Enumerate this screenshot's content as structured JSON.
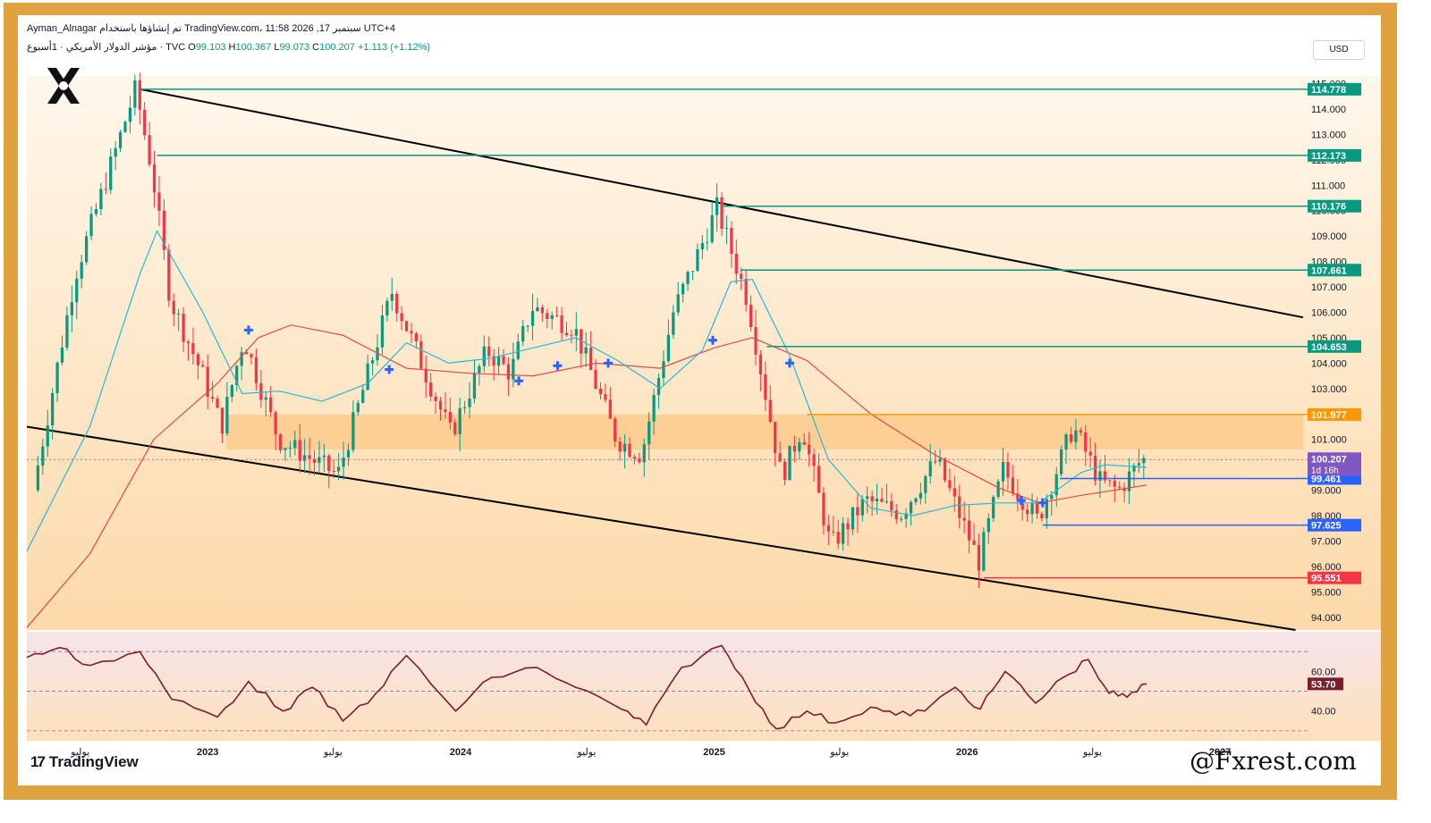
{
  "header": {
    "line1": "Ayman_Alnagar تم إنشاؤها باستخدام TradingView.com، 11:58 2026 ,17 سبتمبر UTC+4",
    "symbol": "مؤشر الدولار الأمريكي · 1أسبوع · TVC",
    "o_label": "O",
    "o_value": "99.103",
    "h_label": "H",
    "h_value": "100.367",
    "l_label": "L",
    "l_value": "99.073",
    "c_label": "C",
    "c_value": "100.207",
    "change": "+1.113 (+1.12%)"
  },
  "currency_button": "USD",
  "branding": {
    "tv_logo_text": "TradingView",
    "watermark": "@Fxrest.com"
  },
  "colors": {
    "resistance_line": "#089981",
    "support_line": "#2962ff",
    "low_line": "#f23645",
    "zone_line": "#ff9800",
    "candle_up": "#089981",
    "candle_down": "#f23645",
    "ma_fast": "#26b8d4",
    "ma_slow": "#e5484d",
    "rsi": "#7b1d2a",
    "frame": "#e0a23e"
  },
  "chart_data": [
    {
      "type": "candlestick",
      "symbol": "DXY",
      "timeframe": "1W",
      "ylim": [
        93.5,
        115.3
      ],
      "y_ticks": [
        "94.000",
        "95.000",
        "96.000",
        "97.000",
        "98.000",
        "99.000",
        "101.000",
        "102.000",
        "103.000",
        "104.000",
        "105.000",
        "106.000",
        "107.000",
        "108.000",
        "109.000",
        "110.000",
        "111.000",
        "112.000",
        "113.000",
        "114.000",
        "115.000"
      ],
      "x_ticks": [
        "يوليو",
        "2023",
        "يوليو",
        "2024",
        "يوليو",
        "2025",
        "يوليو",
        "2026",
        "يوليو",
        "2027"
      ],
      "x_tick_dates": [
        "2022-07-01",
        "2023-01-01",
        "2023-07-01",
        "2024-01-01",
        "2024-07-01",
        "2025-01-01",
        "2025-07-01",
        "2026-01-01",
        "2026-07-01",
        "2027-01-01"
      ],
      "ohlc_path": [
        [
          "2022-05-01",
          99.0
        ],
        [
          "2022-07-01",
          107.5
        ],
        [
          "2022-09-26",
          114.8
        ],
        [
          "2022-10-20",
          111.5
        ],
        [
          "2022-11-15",
          106.5
        ],
        [
          "2023-01-01",
          103.5
        ],
        [
          "2023-01-28",
          101.5
        ],
        [
          "2023-03-01",
          105.0
        ],
        [
          "2023-04-20",
          101.0
        ],
        [
          "2023-07-15",
          99.6
        ],
        [
          "2023-10-01",
          106.8
        ],
        [
          "2023-12-25",
          101.2
        ],
        [
          "2024-02-15",
          104.5
        ],
        [
          "2024-03-20",
          103.6
        ],
        [
          "2024-04-20",
          106.2
        ],
        [
          "2024-06-20",
          105.4
        ],
        [
          "2024-08-20",
          101.0
        ],
        [
          "2024-09-25",
          100.4
        ],
        [
          "2024-11-10",
          106.0
        ],
        [
          "2025-01-12",
          110.1
        ],
        [
          "2025-02-25",
          106.5
        ],
        [
          "2025-04-15",
          99.5
        ],
        [
          "2025-05-15",
          101.5
        ],
        [
          "2025-06-25",
          96.8
        ],
        [
          "2025-08-15",
          98.6
        ],
        [
          "2025-10-05",
          98.1
        ],
        [
          "2025-11-25",
          100.2
        ],
        [
          "2026-01-25",
          96.2
        ],
        [
          "2026-03-01",
          99.8
        ],
        [
          "2026-04-20",
          97.8
        ],
        [
          "2026-06-10",
          101.5
        ],
        [
          "2026-07-20",
          99.3
        ],
        [
          "2026-08-15",
          99.0
        ],
        [
          "2026-09-17",
          100.207
        ]
      ],
      "levels": [
        {
          "price": 114.778,
          "label": "114.778",
          "kind": "resistance",
          "from": "2022-09-26"
        },
        {
          "price": 112.173,
          "label": "112.173",
          "kind": "resistance",
          "from": "2022-10-20"
        },
        {
          "price": 110.176,
          "label": "110.176",
          "kind": "resistance",
          "from": "2025-01-12"
        },
        {
          "price": 107.661,
          "label": "107.661",
          "kind": "resistance",
          "from": "2025-02-08"
        },
        {
          "price": 104.653,
          "label": "104.653",
          "kind": "resistance",
          "from": "2025-03-18"
        },
        {
          "price": 101.977,
          "label": "101.977",
          "kind": "zone",
          "from": "2025-05-15"
        },
        {
          "price": 99.461,
          "label": "99.461",
          "kind": "support",
          "from": "2026-05-15"
        },
        {
          "price": 97.625,
          "label": "97.625",
          "kind": "support",
          "from": "2026-04-20"
        },
        {
          "price": 95.551,
          "label": "95.551",
          "kind": "low",
          "from": "2026-01-25"
        }
      ],
      "current_price": {
        "value": "100.207",
        "countdown": "1d 16h"
      },
      "zone": {
        "from": "2023-01-28",
        "to": "2027-05-01",
        "low": 100.6,
        "high": 101.977
      },
      "channel": {
        "upper": [
          [
            "2022-09-26",
            114.778
          ],
          [
            "2027-05-01",
            105.8
          ]
        ],
        "lower": [
          [
            "2022-04-15",
            101.5
          ],
          [
            "2027-04-20",
            93.5
          ]
        ]
      },
      "cross_markers": [
        [
          "2023-03-01",
          105.3
        ],
        [
          "2023-09-20",
          103.75
        ],
        [
          "2024-03-25",
          103.3
        ],
        [
          "2024-05-20",
          103.9
        ],
        [
          "2024-08-01",
          104.0
        ],
        [
          "2024-12-30",
          104.9
        ],
        [
          "2025-04-20",
          104.0
        ],
        [
          "2026-03-20",
          98.6
        ],
        [
          "2026-04-20",
          98.5
        ]
      ],
      "ma_fast": [
        [
          "2022-04-15",
          96.6
        ],
        [
          "2022-07-15",
          101.5
        ],
        [
          "2022-09-25",
          107.5
        ],
        [
          "2022-10-20",
          109.2
        ],
        [
          "2022-12-25",
          106.0
        ],
        [
          "2023-02-20",
          102.8
        ],
        [
          "2023-04-15",
          102.9
        ],
        [
          "2023-06-15",
          102.5
        ],
        [
          "2023-08-20",
          103.2
        ],
        [
          "2023-10-15",
          104.8
        ],
        [
          "2023-12-15",
          104.0
        ],
        [
          "2024-02-15",
          104.2
        ],
        [
          "2024-04-15",
          104.6
        ],
        [
          "2024-06-15",
          105.0
        ],
        [
          "2024-08-15",
          104.1
        ],
        [
          "2024-10-15",
          103.0
        ],
        [
          "2024-12-15",
          104.5
        ],
        [
          "2025-01-25",
          107.2
        ],
        [
          "2025-02-25",
          107.3
        ],
        [
          "2025-04-20",
          104.3
        ],
        [
          "2025-06-15",
          100.2
        ],
        [
          "2025-08-15",
          98.3
        ],
        [
          "2025-10-15",
          98.0
        ],
        [
          "2025-12-15",
          98.4
        ],
        [
          "2026-02-15",
          98.5
        ],
        [
          "2026-04-15",
          98.5
        ],
        [
          "2026-06-15",
          99.7
        ],
        [
          "2026-07-20",
          100.0
        ],
        [
          "2026-09-17",
          99.9
        ]
      ],
      "ma_slow": [
        [
          "2022-04-15",
          93.6
        ],
        [
          "2022-07-15",
          96.5
        ],
        [
          "2022-10-15",
          101.0
        ],
        [
          "2023-01-15",
          103.2
        ],
        [
          "2023-03-15",
          105.0
        ],
        [
          "2023-05-01",
          105.5
        ],
        [
          "2023-07-15",
          105.1
        ],
        [
          "2023-10-15",
          103.8
        ],
        [
          "2024-01-15",
          103.6
        ],
        [
          "2024-04-15",
          103.5
        ],
        [
          "2024-07-15",
          104.0
        ],
        [
          "2024-10-15",
          103.8
        ],
        [
          "2025-01-01",
          104.6
        ],
        [
          "2025-02-25",
          105.0
        ],
        [
          "2025-05-15",
          104.1
        ],
        [
          "2025-08-15",
          102.0
        ],
        [
          "2025-11-15",
          100.4
        ],
        [
          "2026-02-15",
          99.1
        ],
        [
          "2026-04-15",
          98.5
        ],
        [
          "2026-06-15",
          98.8
        ],
        [
          "2026-09-17",
          99.2
        ]
      ]
    },
    {
      "type": "line",
      "name": "RSI",
      "ylim": [
        25,
        80
      ],
      "y_ticks": [
        "60.00",
        "40.00"
      ],
      "levels": [
        70,
        50,
        30
      ],
      "current": {
        "value": 53.7,
        "label": "53.70"
      },
      "x": [
        "2022-04-15",
        "2022-06-01",
        "2022-07-15",
        "2022-09-25",
        "2022-11-10",
        "2023-01-15",
        "2023-03-01",
        "2023-04-20",
        "2023-06-01",
        "2023-07-15",
        "2023-09-01",
        "2023-10-15",
        "2023-12-25",
        "2024-02-15",
        "2024-04-20",
        "2024-06-15",
        "2024-08-20",
        "2024-09-25",
        "2024-11-15",
        "2025-01-12",
        "2025-02-20",
        "2025-04-01",
        "2025-05-15",
        "2025-06-25",
        "2025-08-15",
        "2025-09-20",
        "2025-11-01",
        "2025-12-15",
        "2026-01-20",
        "2026-02-25",
        "2026-04-10",
        "2026-05-20",
        "2026-06-25",
        "2026-07-25",
        "2026-08-20",
        "2026-09-17"
      ],
      "y": [
        67,
        72,
        63,
        70,
        46,
        37,
        55,
        40,
        52,
        35,
        49,
        68,
        40,
        57,
        62,
        52,
        41,
        33,
        62,
        73,
        51,
        31,
        40,
        34,
        42,
        38,
        40,
        52,
        41,
        60,
        44,
        57,
        66,
        49,
        47,
        53.7
      ]
    }
  ]
}
